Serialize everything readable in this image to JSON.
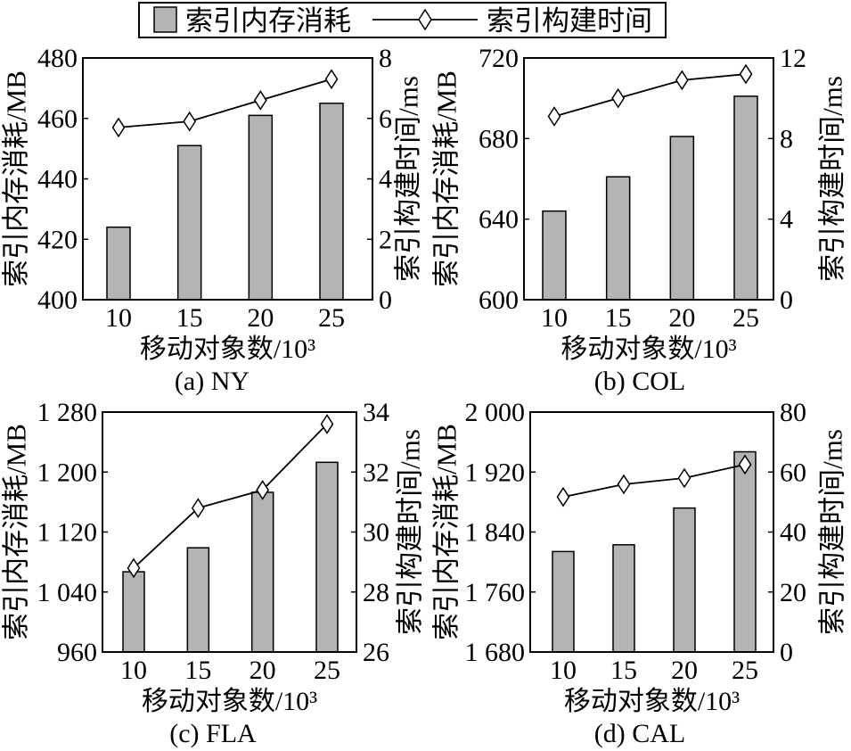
{
  "legend": {
    "bar_label": "索引内存消耗",
    "line_label": "索引构建时间"
  },
  "colors": {
    "bar_fill": "#b4b4b4",
    "line": "#000000",
    "marker_fill": "#ffffff",
    "frame": "#000000"
  },
  "chart_data": [
    {
      "type": "bar",
      "caption": "(a) NY",
      "categories": [
        "10",
        "15",
        "20",
        "25"
      ],
      "xlabel": "移动对象数/10³",
      "ylabel": "索引内存消耗/MB",
      "ylabel_right": "索引构建时间/ms",
      "ylim": [
        400,
        480
      ],
      "ylim_right": [
        0,
        8
      ],
      "yticks": [
        {
          "value": 400,
          "label": "400"
        },
        {
          "value": 420,
          "label": "420"
        },
        {
          "value": 440,
          "label": "440"
        },
        {
          "value": 460,
          "label": "460"
        },
        {
          "value": 480,
          "label": "480"
        }
      ],
      "yticks_right": [
        {
          "value": 0,
          "label": "0"
        },
        {
          "value": 2,
          "label": "2"
        },
        {
          "value": 4,
          "label": "4"
        },
        {
          "value": 6,
          "label": "6"
        },
        {
          "value": 8,
          "label": "8"
        }
      ],
      "series": [
        {
          "type": "bar",
          "values": [
            424,
            451,
            461,
            465
          ]
        },
        {
          "type": "line",
          "values": [
            5.7,
            5.9,
            6.6,
            7.3
          ]
        }
      ],
      "grid": false
    },
    {
      "type": "bar",
      "caption": "(b) COL",
      "categories": [
        "10",
        "15",
        "20",
        "25"
      ],
      "xlabel": "移动对象数/10³",
      "ylabel": "索引内存消耗/MB",
      "ylabel_right": "索引构建时间/ms",
      "ylim": [
        600,
        720
      ],
      "ylim_right": [
        0,
        12
      ],
      "yticks": [
        {
          "value": 600,
          "label": "600"
        },
        {
          "value": 640,
          "label": "640"
        },
        {
          "value": 680,
          "label": "680"
        },
        {
          "value": 720,
          "label": "720"
        }
      ],
      "yticks_right": [
        {
          "value": 0,
          "label": "0"
        },
        {
          "value": 4,
          "label": "4"
        },
        {
          "value": 8,
          "label": "8"
        },
        {
          "value": 12,
          "label": "12"
        }
      ],
      "series": [
        {
          "type": "bar",
          "values": [
            644,
            661,
            681,
            701
          ]
        },
        {
          "type": "line",
          "values": [
            9.1,
            10.0,
            10.9,
            11.2
          ]
        }
      ],
      "grid": false
    },
    {
      "type": "bar",
      "caption": "(c) FLA",
      "categories": [
        "10",
        "15",
        "20",
        "25"
      ],
      "xlabel": "移动对象数/10³",
      "ylabel": "索引内存消耗/MB",
      "ylabel_right": "索引构建时间/ms",
      "ylim": [
        960,
        1280
      ],
      "ylim_right": [
        26,
        34
      ],
      "yticks": [
        {
          "value": 960,
          "label": "960"
        },
        {
          "value": 1040,
          "label": "1 040"
        },
        {
          "value": 1120,
          "label": "1 120"
        },
        {
          "value": 1200,
          "label": "1 200"
        },
        {
          "value": 1280,
          "label": "1 280"
        }
      ],
      "yticks_right": [
        {
          "value": 26,
          "label": "26"
        },
        {
          "value": 28,
          "label": "28"
        },
        {
          "value": 30,
          "label": "30"
        },
        {
          "value": 32,
          "label": "32"
        },
        {
          "value": 34,
          "label": "34"
        }
      ],
      "series": [
        {
          "type": "bar",
          "values": [
            1067,
            1099,
            1173,
            1213
          ]
        },
        {
          "type": "line",
          "values": [
            28.8,
            30.8,
            31.4,
            33.6
          ]
        }
      ],
      "grid": false
    },
    {
      "type": "bar",
      "caption": "(d) CAL",
      "categories": [
        "10",
        "15",
        "20",
        "25"
      ],
      "xlabel": "移动对象数/10³",
      "ylabel": "索引内存消耗/MB",
      "ylabel_right": "索引构建时间/ms",
      "ylim": [
        1680,
        2000
      ],
      "ylim_right": [
        0,
        80
      ],
      "yticks": [
        {
          "value": 1680,
          "label": "1 680"
        },
        {
          "value": 1760,
          "label": "1 760"
        },
        {
          "value": 1840,
          "label": "1 840"
        },
        {
          "value": 1920,
          "label": "1 920"
        },
        {
          "value": 2000,
          "label": "2 000"
        }
      ],
      "yticks_right": [
        {
          "value": 0,
          "label": "0"
        },
        {
          "value": 20,
          "label": "20"
        },
        {
          "value": 40,
          "label": "40"
        },
        {
          "value": 60,
          "label": "60"
        },
        {
          "value": 80,
          "label": "80"
        }
      ],
      "series": [
        {
          "type": "bar",
          "values": [
            1814,
            1823,
            1872,
            1947
          ]
        },
        {
          "type": "line",
          "values": [
            51.7,
            55.9,
            58.0,
            62.5
          ]
        }
      ],
      "grid": false
    }
  ]
}
